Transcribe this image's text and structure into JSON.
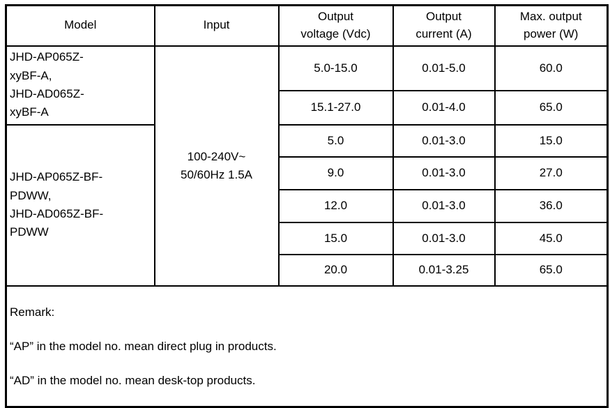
{
  "spec_table": {
    "headers": {
      "model": "Model",
      "input": "Input",
      "output_voltage": "Output\nvoltage (Vdc)",
      "output_current": "Output\ncurrent (A)",
      "max_output_power": "Max. output\npower (W)"
    },
    "model_groups": [
      {
        "model": "JHD-AP065Z-\nxyBF-A,\nJHD-AD065Z-\nxyBF-A"
      },
      {
        "model": "JHD-AP065Z-BF-\nPDWW,\nJHD-AD065Z-BF-\nPDWW"
      }
    ],
    "input_rating": "100-240V~\n50/60Hz 1.5A",
    "rows": [
      {
        "voltage": "5.0-15.0",
        "current": "0.01-5.0",
        "power": "60.0"
      },
      {
        "voltage": "15.1-27.0",
        "current": "0.01-4.0",
        "power": "65.0"
      },
      {
        "voltage": "5.0",
        "current": "0.01-3.0",
        "power": "15.0"
      },
      {
        "voltage": "9.0",
        "current": "0.01-3.0",
        "power": "27.0"
      },
      {
        "voltage": "12.0",
        "current": "0.01-3.0",
        "power": "36.0"
      },
      {
        "voltage": "15.0",
        "current": "0.01-3.0",
        "power": "45.0"
      },
      {
        "voltage": "20.0",
        "current": "0.01-3.25",
        "power": "65.0"
      }
    ],
    "remark": {
      "title": "Remark:",
      "lines": [
        "“AP” in the model no. mean direct plug in products.",
        "“AD” in the model no. mean desk-top products."
      ]
    }
  }
}
